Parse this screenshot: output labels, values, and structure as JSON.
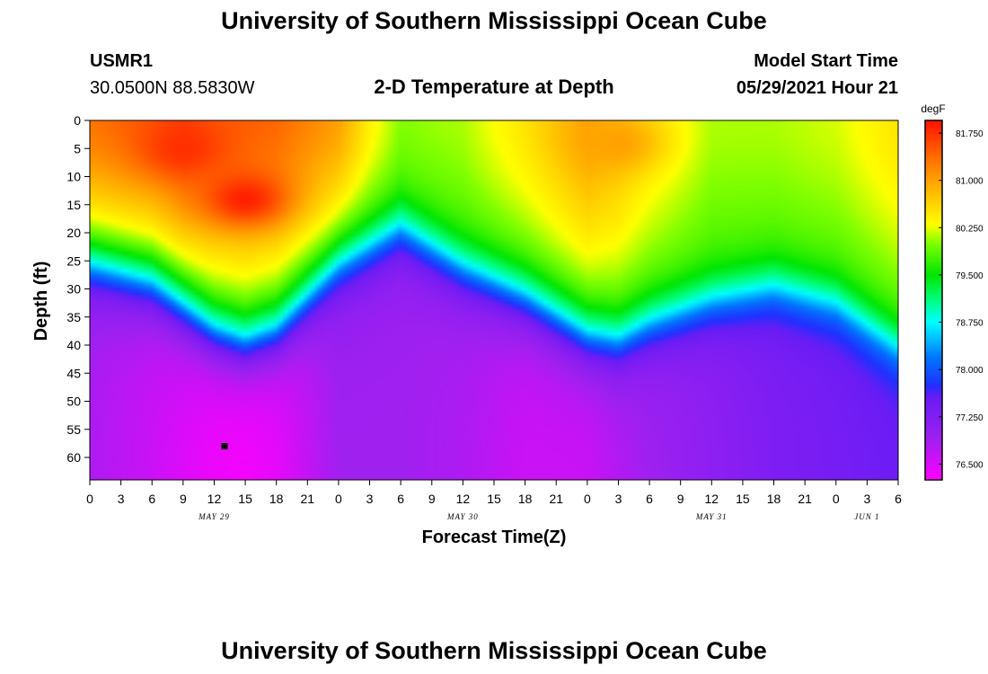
{
  "page": {
    "title_top": "University of Southern Mississippi Ocean Cube",
    "title_bottom": "University of Southern Mississippi Ocean Cube",
    "station_id": "USMR1",
    "station_coords": "30.0500N  88.5830W",
    "plot_title": "2-D Temperature at Depth",
    "model_start_label": "Model Start Time",
    "model_start_value": "05/29/2021 Hour 21"
  },
  "colors": {
    "background": "#ffffff",
    "axis": "#000000",
    "marker": "#000000"
  },
  "chart_data": {
    "type": "heatmap",
    "title": "2-D Temperature at Depth",
    "xlabel": "Forecast Time(Z)",
    "ylabel": "Depth (ft)",
    "colorbar_label": "degF",
    "x_range_hours": [
      0,
      78
    ],
    "x_tick_hours": [
      0,
      3,
      6,
      9,
      12,
      15,
      18,
      21,
      24,
      27,
      30,
      33,
      36,
      39,
      42,
      45,
      48,
      51,
      54,
      57,
      60,
      63,
      66,
      69,
      72,
      75,
      78
    ],
    "x_tick_labels": [
      "0",
      "3",
      "6",
      "9",
      "12",
      "15",
      "18",
      "21",
      "0",
      "3",
      "6",
      "9",
      "12",
      "15",
      "18",
      "21",
      "0",
      "3",
      "6",
      "9",
      "12",
      "15",
      "18",
      "21",
      "0",
      "3",
      "6"
    ],
    "date_labels": [
      {
        "hour": 12,
        "text": "MAY 29"
      },
      {
        "hour": 36,
        "text": "MAY 30"
      },
      {
        "hour": 60,
        "text": "MAY 31"
      },
      {
        "hour": 75,
        "text": "JUN 1"
      }
    ],
    "y_range_ft": [
      0,
      64
    ],
    "y_ticks": [
      0,
      5,
      10,
      15,
      20,
      25,
      30,
      35,
      40,
      45,
      50,
      55,
      60
    ],
    "y_tick_labels": [
      "0",
      "5",
      "10",
      "15",
      "20",
      "25",
      "30",
      "35",
      "40",
      "45",
      "50",
      "55",
      "60"
    ],
    "colorbar_range": [
      76.25,
      81.95
    ],
    "colorbar_ticks": [
      81.75,
      81.0,
      80.25,
      79.5,
      78.75,
      78.0,
      77.25,
      76.5
    ],
    "colorbar_tick_labels": [
      "81.750",
      "81.000",
      "80.250",
      "79.500",
      "78.750",
      "78.000",
      "77.250",
      "76.500"
    ],
    "colormap": [
      {
        "t": 76.25,
        "color": "#ff00ff"
      },
      {
        "t": 76.9,
        "color": "#a020f0"
      },
      {
        "t": 77.55,
        "color": "#6a1cf5"
      },
      {
        "t": 77.75,
        "color": "#2030ff"
      },
      {
        "t": 78.2,
        "color": "#0078ff"
      },
      {
        "t": 78.75,
        "color": "#00ffff"
      },
      {
        "t": 79.1,
        "color": "#00ff80"
      },
      {
        "t": 79.5,
        "color": "#00e600"
      },
      {
        "t": 80.0,
        "color": "#80ff00"
      },
      {
        "t": 80.3,
        "color": "#ffff00"
      },
      {
        "t": 80.9,
        "color": "#ffb000"
      },
      {
        "t": 81.35,
        "color": "#ff7000"
      },
      {
        "t": 81.95,
        "color": "#ff1000"
      }
    ],
    "thermocline_depth": {
      "hours": [
        0,
        6,
        12,
        15,
        18,
        24,
        30,
        36,
        42,
        48,
        51,
        54,
        60,
        66,
        72,
        78
      ],
      "depth_ft": [
        25,
        28,
        36,
        38,
        36,
        25,
        18,
        25,
        30,
        37,
        38,
        35,
        31,
        29,
        32,
        40
      ]
    },
    "surface_temp_degF": {
      "hours": [
        0,
        6,
        9,
        12,
        18,
        24,
        27,
        30,
        36,
        42,
        48,
        51,
        54,
        60,
        66,
        72,
        78
      ],
      "value": [
        81.3,
        81.5,
        81.65,
        81.5,
        81.4,
        81.0,
        80.4,
        80.0,
        80.1,
        80.5,
        81.0,
        80.8,
        80.5,
        80.1,
        80.1,
        80.2,
        80.5
      ]
    },
    "bottom_temp_degF": {
      "hours": [
        0,
        6,
        12,
        15,
        18,
        24,
        30,
        36,
        42,
        48,
        54,
        60,
        66,
        72,
        78
      ],
      "value": [
        76.8,
        76.6,
        76.35,
        76.3,
        76.4,
        76.9,
        76.9,
        76.8,
        76.6,
        76.6,
        76.9,
        77.1,
        77.3,
        77.4,
        77.5
      ]
    },
    "warm_cores": [
      {
        "hour": 15,
        "depth_ft": 14,
        "value_degF": 81.85
      },
      {
        "hour": 9,
        "depth_ft": 5,
        "value_degF": 81.75
      },
      {
        "hour": 51,
        "depth_ft": 4,
        "value_degF": 81.0
      }
    ],
    "marker": {
      "hour": 13,
      "depth_ft": 58
    }
  }
}
